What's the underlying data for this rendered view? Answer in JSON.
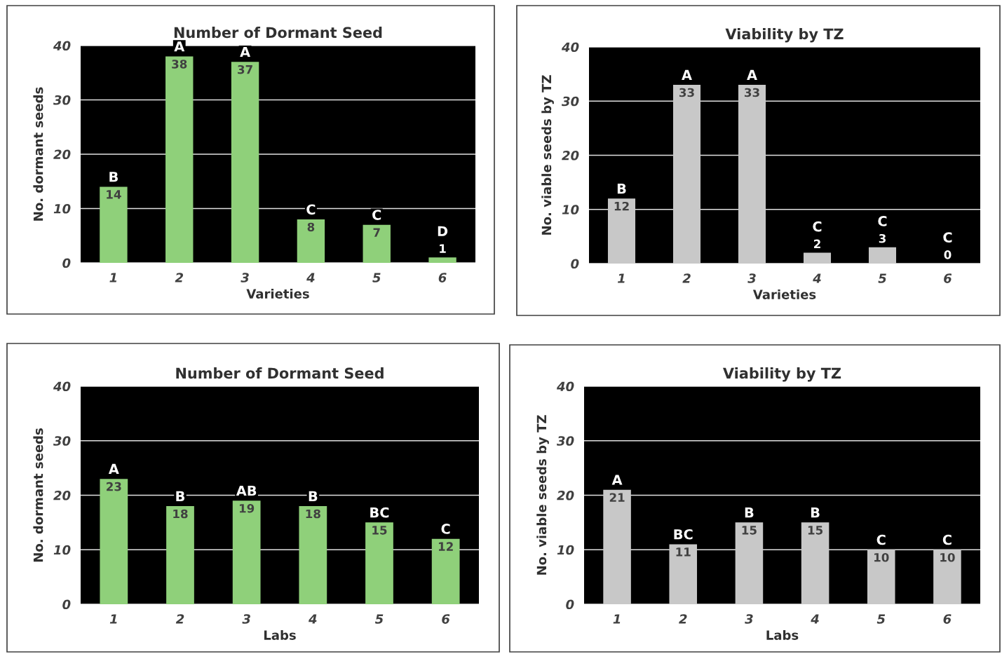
{
  "chart_data": [
    {
      "type": "bar",
      "title": "Number of Dormant Seed",
      "xlabel": "Varieties",
      "ylabel": "No. dormant seeds",
      "categories": [
        "1",
        "2",
        "3",
        "4",
        "5",
        "6"
      ],
      "values": [
        14,
        38,
        37,
        8,
        7,
        1
      ],
      "color": "#8fd07a",
      "ylim": [
        0,
        40
      ],
      "yticks": [
        0,
        10,
        20,
        30,
        40
      ],
      "grid": "y",
      "data_labels": true,
      "annotations": [
        {
          "text": "B",
          "x": "1",
          "y": 14
        },
        {
          "text": "A",
          "x": "2",
          "y": 38
        },
        {
          "text": "A",
          "x": "3",
          "y": 37
        },
        {
          "text": "C",
          "x": "4",
          "y": 8
        },
        {
          "text": "C",
          "x": "5",
          "y": 7
        },
        {
          "text": "D",
          "x": "6",
          "y": 1
        }
      ]
    },
    {
      "type": "bar",
      "title": "Viability by TZ",
      "xlabel": "Varieties",
      "ylabel": "No. viable seeds by TZ",
      "categories": [
        "1",
        "2",
        "3",
        "4",
        "5",
        "6"
      ],
      "values": [
        12,
        33,
        33,
        2,
        3,
        0
      ],
      "color": "#c8c8c8",
      "ylim": [
        0,
        40
      ],
      "yticks": [
        0,
        10,
        20,
        30,
        40
      ],
      "grid": "y",
      "data_labels": true,
      "annotations": [
        {
          "text": "B",
          "x": "1",
          "y": 12
        },
        {
          "text": "A",
          "x": "2",
          "y": 33
        },
        {
          "text": "A",
          "x": "3",
          "y": 33
        },
        {
          "text": "C",
          "x": "4",
          "y": 2
        },
        {
          "text": "C",
          "x": "5",
          "y": 3
        },
        {
          "text": "C",
          "x": "6",
          "y": 0
        }
      ]
    },
    {
      "type": "bar",
      "title": "Number of Dormant Seed",
      "xlabel": "Labs",
      "ylabel": "No. dormant seeds",
      "categories": [
        "1",
        "2",
        "3",
        "4",
        "5",
        "6"
      ],
      "values": [
        23,
        18,
        19,
        18,
        15,
        12
      ],
      "color": "#8fd07a",
      "ylim": [
        0,
        40
      ],
      "yticks": [
        0,
        10,
        20,
        30,
        40
      ],
      "grid": "y",
      "data_labels": true,
      "annotations": [
        {
          "text": "A",
          "x": "1",
          "y": 23
        },
        {
          "text": "B",
          "x": "2",
          "y": 18
        },
        {
          "text": "AB",
          "x": "3",
          "y": 19
        },
        {
          "text": "B",
          "x": "4",
          "y": 18
        },
        {
          "text": "BC",
          "x": "5",
          "y": 15
        },
        {
          "text": "C",
          "x": "6",
          "y": 12
        }
      ]
    },
    {
      "type": "bar",
      "title": "Viability by TZ",
      "xlabel": "Labs",
      "ylabel": "No. viable seeds by TZ",
      "categories": [
        "1",
        "2",
        "3",
        "4",
        "5",
        "6"
      ],
      "values": [
        21,
        11,
        15,
        15,
        10,
        10
      ],
      "color": "#c8c8c8",
      "ylim": [
        0,
        40
      ],
      "yticks": [
        0,
        10,
        20,
        30,
        40
      ],
      "grid": "y",
      "data_labels": true,
      "annotations": [
        {
          "text": "A",
          "x": "1",
          "y": 21
        },
        {
          "text": "BC",
          "x": "2",
          "y": 11
        },
        {
          "text": "B",
          "x": "3",
          "y": 15
        },
        {
          "text": "B",
          "x": "4",
          "y": 15
        },
        {
          "text": "C",
          "x": "5",
          "y": 10
        },
        {
          "text": "C",
          "x": "6",
          "y": 10
        }
      ]
    }
  ]
}
